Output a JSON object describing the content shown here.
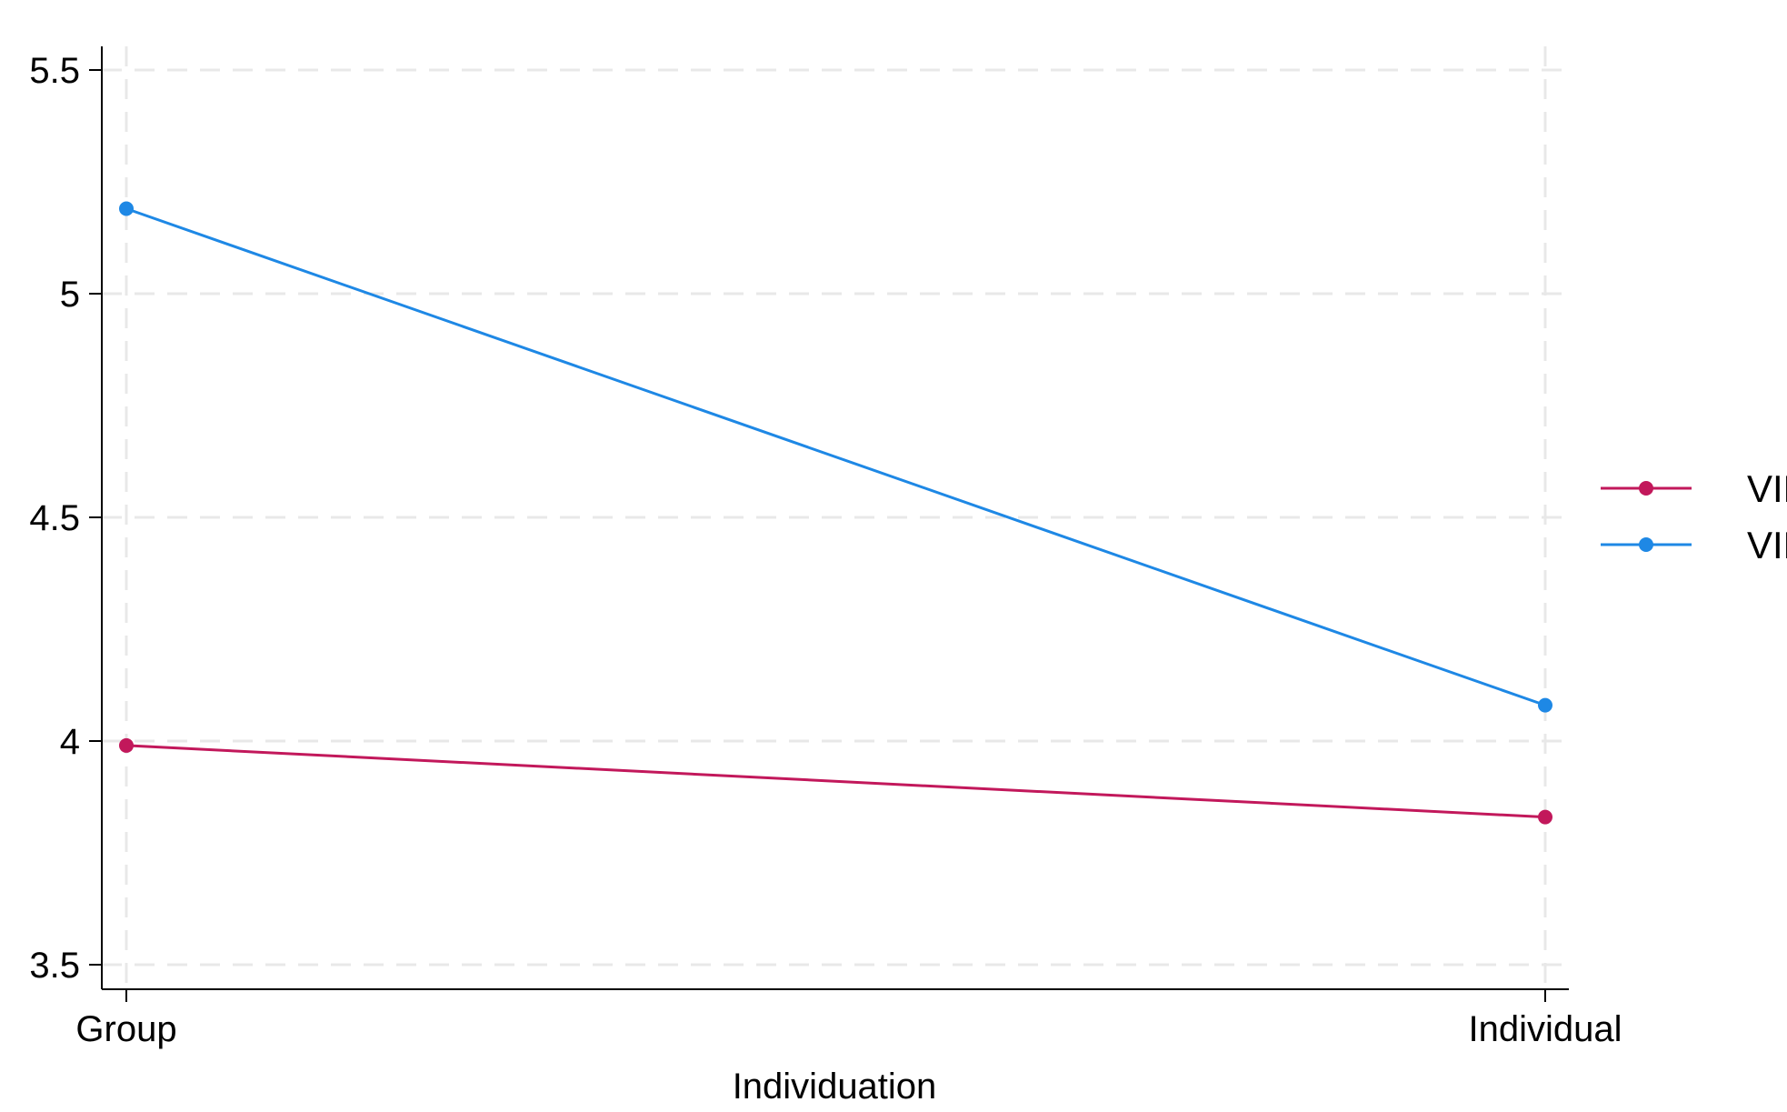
{
  "chart_data": {
    "type": "line",
    "title": "",
    "xlabel": "Individuation",
    "ylabel": "",
    "categories": [
      "Group",
      "Individual"
    ],
    "yticks": [
      "3.5",
      "4",
      "4.5",
      "5",
      "5.5"
    ],
    "ylim": [
      3.45,
      5.56
    ],
    "grid": true,
    "legend_position": "right",
    "series": [
      {
        "name": "VIE",
        "color": "#c2185b",
        "values": [
          3.99,
          3.83
        ]
      },
      {
        "name": "VID",
        "color": "#1e88e5",
        "values": [
          5.19,
          4.08
        ]
      }
    ]
  }
}
